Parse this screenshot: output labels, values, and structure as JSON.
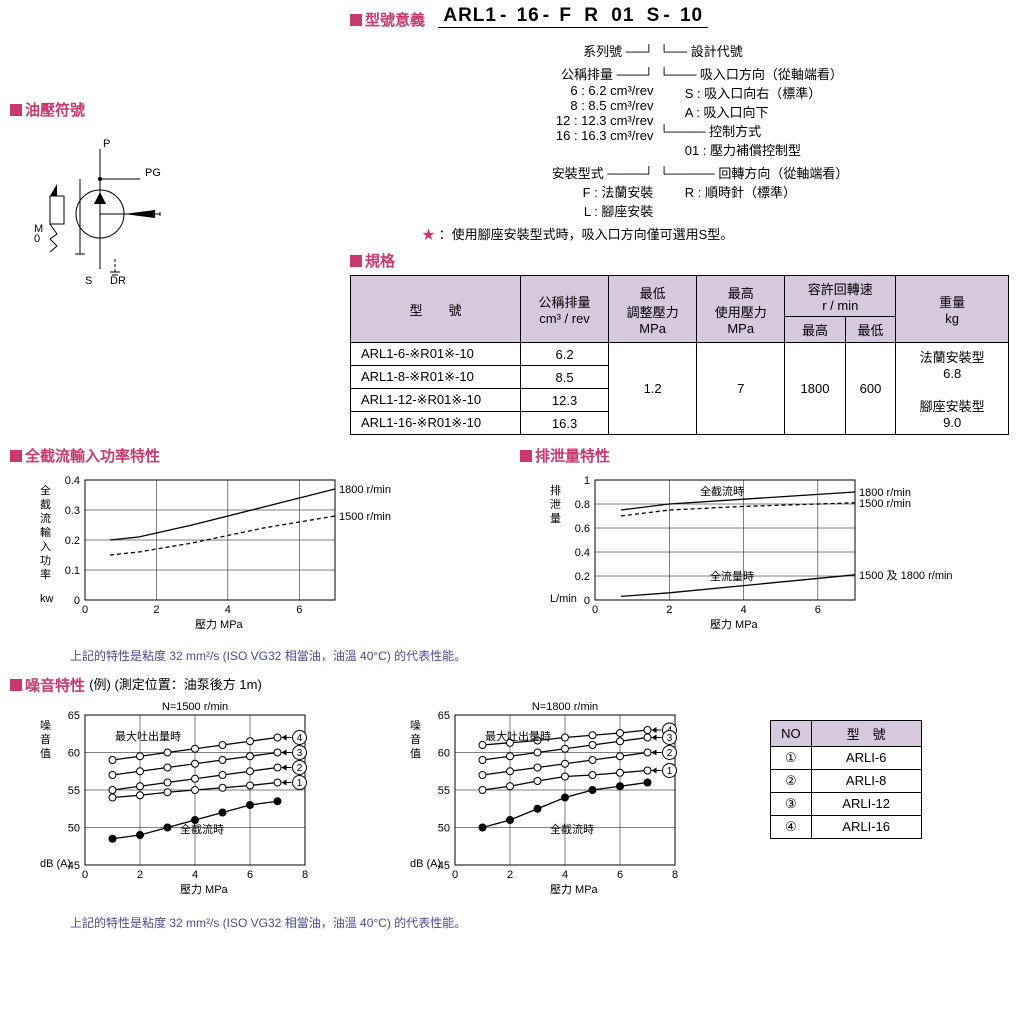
{
  "headers": {
    "model_meaning": "型號意義",
    "hydraulic_symbol": "油壓符號",
    "spec": "規格",
    "full_cutoff": "全截流輸入功率特性",
    "drain": "排泄量特性",
    "noise": "噪音特性",
    "noise_sub": "(例) (測定位置：油泵後方 1m)"
  },
  "model_code_segs": [
    "ARL1",
    "-",
    "16",
    "-",
    "F",
    "R",
    "01",
    "S",
    "-",
    "10"
  ],
  "tree": {
    "series": "系列號",
    "disp_lbl": "公稱排量",
    "disp_opts": [
      "6 : 6.2 cm³/rev",
      "8 : 8.5 cm³/rev",
      "12 : 12.3 cm³/rev",
      "16 : 16.3 cm³/rev"
    ],
    "mount_lbl": "安裝型式",
    "mount_opts": [
      "F : 法蘭安裝",
      "L : 腳座安裝"
    ],
    "design": "設計代號",
    "inlet_lbl": "吸入口方向（從軸端看）",
    "inlet_opts": [
      "S : 吸入口向右（標準）",
      "A : 吸入口向下"
    ],
    "ctrl_lbl": "控制方式",
    "ctrl_opts": [
      "01 : 壓力補償控制型"
    ],
    "rot_lbl": "回轉方向（從軸端看）",
    "rot_opts": [
      "R : 順時針（標準）"
    ],
    "star_note": "：使用腳座安裝型式時，吸入口方向僅可選用S型。"
  },
  "spec_table": {
    "cols": [
      "型　　號",
      "公稱排量\ncm³ / rev",
      "最低\n調整壓力\nMPa",
      "最高\n使用壓力\nMPa",
      "容許回轉速\nr / min",
      "重量\nkg"
    ],
    "speed_sub": [
      "最高",
      "最低"
    ],
    "rows": [
      {
        "model": "ARL1-6-※R01※-10",
        "disp": "6.2"
      },
      {
        "model": "ARL1-8-※R01※-10",
        "disp": "8.5"
      },
      {
        "model": "ARL1-12-※R01※-10",
        "disp": "12.3"
      },
      {
        "model": "ARL1-16-※R01※-10",
        "disp": "16.3"
      }
    ],
    "min_p": "1.2",
    "max_p": "7",
    "max_rpm": "1800",
    "min_rpm": "600",
    "weight": [
      "法蘭安裝型",
      "6.8",
      "",
      "腳座安裝型",
      "9.0"
    ]
  },
  "chart_cutoff": {
    "ylabel": "全截流輸入功率",
    "yunit": "kw",
    "xlabel": "壓力",
    "xunit": "MPa",
    "xlim": [
      0,
      7
    ],
    "xticks": [
      0,
      2,
      4,
      6
    ],
    "ylim": [
      0,
      0.4
    ],
    "yticks": [
      0,
      0.1,
      0.2,
      0.3,
      0.4
    ],
    "s1": {
      "label": "1800 r/min",
      "x": [
        0.7,
        1.5,
        3,
        5,
        7
      ],
      "y": [
        0.2,
        0.21,
        0.25,
        0.31,
        0.37
      ]
    },
    "s2": {
      "label": "1500 r/min",
      "x": [
        0.7,
        1.5,
        3,
        5,
        7
      ],
      "y": [
        0.15,
        0.16,
        0.19,
        0.24,
        0.28
      ]
    },
    "grid_color": "#000",
    "bg": "#fff"
  },
  "chart_drain": {
    "ylabel": "排泄量",
    "yunit": "L/min",
    "xlabel": "壓力",
    "xunit": "MPa",
    "xlim": [
      0,
      7
    ],
    "xticks": [
      0,
      2,
      4,
      6
    ],
    "ylim": [
      0,
      1.0
    ],
    "yticks": [
      0,
      0.2,
      0.4,
      0.6,
      0.8,
      1.0
    ],
    "s1": {
      "label": "1800 r/min",
      "x": [
        0.7,
        2,
        4,
        7
      ],
      "y": [
        0.75,
        0.8,
        0.84,
        0.9
      ],
      "tag": "全截流時"
    },
    "s2": {
      "label": "1500 r/min",
      "x": [
        0.7,
        2,
        4,
        7
      ],
      "y": [
        0.7,
        0.75,
        0.78,
        0.81
      ]
    },
    "s3": {
      "label": "1500 及\n1800 r/min",
      "x": [
        0.7,
        2,
        4,
        7
      ],
      "y": [
        0.03,
        0.06,
        0.12,
        0.21
      ],
      "tag": "全流量時"
    }
  },
  "note_text": "上記的特性是粘度 32 mm²/s (ISO VG32 相當油，油溫 40°C) 的代表性能。",
  "noise_charts": {
    "ylabel": "噪音值",
    "yunit": "dB (A)",
    "xlabel": "壓力",
    "xunit": "MPa",
    "xlim": [
      0,
      8
    ],
    "xticks": [
      0,
      2,
      4,
      6,
      8
    ],
    "ylim": [
      45,
      65
    ],
    "yticks": [
      45,
      50,
      55,
      60,
      65
    ],
    "tag_max": "最大吐出量時",
    "tag_cut": "全截流時",
    "c1": {
      "title": "N=1500 r/min",
      "series": [
        {
          "no": "4",
          "x": [
            1,
            2,
            3,
            4,
            5,
            6,
            7
          ],
          "y": [
            59,
            59.5,
            60,
            60.5,
            61,
            61.5,
            62
          ]
        },
        {
          "no": "3",
          "x": [
            1,
            2,
            3,
            4,
            5,
            6,
            7
          ],
          "y": [
            57,
            57.5,
            58,
            58.5,
            59,
            59.5,
            60
          ]
        },
        {
          "no": "2",
          "x": [
            1,
            2,
            3,
            4,
            5,
            6,
            7
          ],
          "y": [
            55,
            55.5,
            56,
            56.5,
            57,
            57.5,
            58
          ]
        },
        {
          "no": "1",
          "x": [
            1,
            2,
            3,
            4,
            5,
            6,
            7
          ],
          "y": [
            54,
            54.3,
            54.7,
            55,
            55.3,
            55.6,
            56
          ]
        }
      ],
      "cut": {
        "x": [
          1,
          2,
          3,
          4,
          5,
          6,
          7
        ],
        "y": [
          48.5,
          49,
          50,
          51,
          52,
          53,
          53.5
        ]
      }
    },
    "c2": {
      "title": "N=1800 r/min",
      "series": [
        {
          "no": "4",
          "x": [
            1,
            2,
            3,
            4,
            5,
            6,
            7
          ],
          "y": [
            61,
            61.3,
            61.6,
            62,
            62.3,
            62.6,
            63
          ]
        },
        {
          "no": "3",
          "x": [
            1,
            2,
            3,
            4,
            5,
            6,
            7
          ],
          "y": [
            59,
            59.5,
            60,
            60.5,
            61,
            61.5,
            62
          ]
        },
        {
          "no": "2",
          "x": [
            1,
            2,
            3,
            4,
            5,
            6,
            7
          ],
          "y": [
            57,
            57.5,
            58,
            58.5,
            59,
            59.5,
            60
          ]
        },
        {
          "no": "1",
          "x": [
            1,
            2,
            3,
            4,
            5,
            6,
            7
          ],
          "y": [
            55,
            55.5,
            56.2,
            56.8,
            57,
            57.3,
            57.6
          ]
        }
      ],
      "cut": {
        "x": [
          1,
          2,
          3,
          4,
          5,
          6,
          7
        ],
        "y": [
          50,
          51,
          52.5,
          54,
          55,
          55.5,
          56
        ]
      }
    }
  },
  "idx_table": {
    "cols": [
      "NO",
      "型　號"
    ],
    "rows": [
      [
        "①",
        "ARLI-6"
      ],
      [
        "②",
        "ARLI-8"
      ],
      [
        "③",
        "ARLI-12"
      ],
      [
        "④",
        "ARLI-16"
      ]
    ]
  },
  "symbols": {
    "P": "P",
    "PG": "PG",
    "M0": "M\n0",
    "S": "S",
    "DR": "DR"
  }
}
